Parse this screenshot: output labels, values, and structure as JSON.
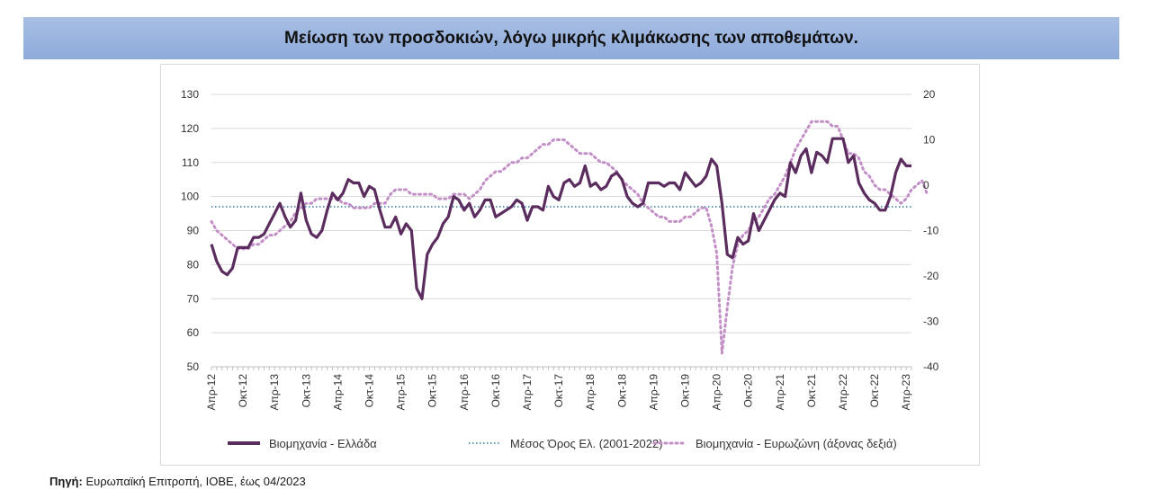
{
  "title": "Μείωση των προσδοκιών, λόγω μικρής κλιμάκωσης των αποθεμάτων.",
  "source": {
    "label": "Πηγή:",
    "text": " Ευρωπαϊκή Επιτροπή, ΙΟΒΕ, έως 04/2023"
  },
  "colors": {
    "greece": "#5b2c5e",
    "average": "#2a78a8",
    "eurozone": "#c28fc7",
    "title_bg": "#8eaadb"
  },
  "chart_data": {
    "type": "line",
    "start": "Απρ-12",
    "x_tick_labels": [
      "Απρ-12",
      "Οκτ-12",
      "Απρ-13",
      "Οκτ-13",
      "Απρ-14",
      "Οκτ-14",
      "Απρ-15",
      "Οκτ-15",
      "Απρ-16",
      "Οκτ-16",
      "Απρ-17",
      "Οκτ-17",
      "Απρ-18",
      "Οκτ-18",
      "Απρ-19",
      "Οκτ-19",
      "Απρ-20",
      "Οκτ-20",
      "Απρ-21",
      "Οκτ-21",
      "Απρ-22",
      "Οκτ-22",
      "Απρ-23"
    ],
    "y_left": {
      "ticks": [
        130,
        120,
        110,
        100,
        90,
        80,
        70,
        60,
        50
      ],
      "range": [
        50,
        130
      ]
    },
    "y_right": {
      "ticks": [
        20,
        10,
        0,
        -10,
        -20,
        -30,
        -40
      ],
      "range": [
        -40,
        20
      ]
    },
    "grid": "horizontal",
    "legend_position": "bottom",
    "series": [
      {
        "name": "Βιομηχανία  - Ελλάδα",
        "axis": "left",
        "style": "solid",
        "values": [
          86,
          81,
          78,
          77,
          79,
          85,
          85,
          85,
          88,
          88,
          89,
          92,
          95,
          98,
          94,
          91,
          93,
          101,
          93,
          89,
          88,
          90,
          96,
          101,
          99,
          101,
          105,
          104,
          104,
          100,
          103,
          102,
          96,
          91,
          91,
          94,
          89,
          92,
          90,
          73,
          70,
          83,
          86,
          88,
          92,
          94,
          100,
          99,
          96,
          98,
          94,
          96,
          99,
          99,
          94,
          95,
          96,
          97,
          99,
          98,
          93,
          97,
          97,
          96,
          103,
          100,
          99,
          104,
          105,
          103,
          104,
          109,
          103,
          104,
          102,
          103,
          106,
          107,
          105,
          100,
          98,
          97,
          98,
          104,
          104,
          104,
          103,
          104,
          104,
          102,
          107,
          105,
          103,
          104,
          106,
          111,
          109,
          98,
          83,
          82,
          88,
          86,
          87,
          95,
          90,
          93,
          96,
          99,
          101,
          100,
          110,
          107,
          112,
          114,
          107,
          113,
          112,
          110,
          117,
          117,
          117,
          110,
          112,
          104,
          101,
          99,
          98,
          96,
          96,
          100,
          107,
          111,
          109,
          109
        ]
      },
      {
        "name": "Μέσος Όρος Ελ. (2001-2022)",
        "axis": "left",
        "style": "dotted",
        "values": [
          97,
          97
        ]
      },
      {
        "name": "Βιομηχανία - Ευρωζώνη (άξονας δεξιά)",
        "axis": "right",
        "style": "dotted",
        "values": [
          -8,
          -10,
          -11,
          -12,
          -13,
          -14,
          -14,
          -14,
          -13,
          -13,
          -12,
          -11,
          -11,
          -10,
          -9,
          -8,
          -6,
          -5,
          -4,
          -4,
          -3,
          -3,
          -3,
          -3,
          -3,
          -4,
          -4,
          -5,
          -5,
          -5,
          -5,
          -4,
          -4,
          -4,
          -2,
          -1,
          -1,
          -1,
          -2,
          -2,
          -2,
          -2,
          -2,
          -3,
          -3,
          -3,
          -2,
          -2,
          -2,
          -3,
          -2,
          -1,
          1,
          2,
          3,
          3,
          4,
          5,
          5,
          6,
          6,
          7,
          8,
          9,
          9,
          10,
          10,
          10,
          9,
          8,
          7,
          7,
          7,
          6,
          5,
          5,
          4,
          3,
          1,
          0,
          -1,
          -2,
          -4,
          -5,
          -6,
          -7,
          -7,
          -8,
          -8,
          -8,
          -7,
          -7,
          -6,
          -5,
          -5,
          -9,
          -15,
          -37,
          -27,
          -18,
          -13,
          -11,
          -10,
          -8,
          -7,
          -5,
          -3,
          -2,
          0,
          2,
          5,
          8,
          10,
          12,
          14,
          14,
          14,
          14,
          13,
          13,
          10,
          7,
          7,
          6,
          3,
          2,
          0,
          -1,
          -1,
          -2,
          -3,
          -4,
          -3,
          -1,
          0,
          1,
          -2
        ]
      }
    ]
  }
}
